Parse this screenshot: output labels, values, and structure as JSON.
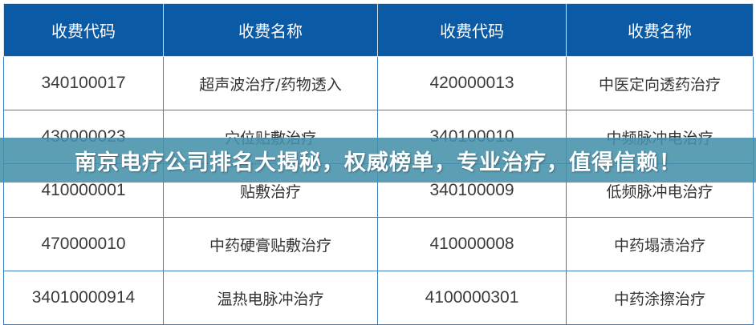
{
  "table": {
    "headers": [
      "收费代码",
      "收费名称",
      "收费代码",
      "收费名称"
    ],
    "rows": [
      [
        "340100017",
        "超声波治疗/药物透入",
        "420000013",
        "中医定向透药治疗"
      ],
      [
        "430000023",
        "穴位贴敷治疗",
        "340100010",
        "中频脉冲电治疗"
      ],
      [
        "410000001",
        "贴敷治疗",
        "340100009",
        "低频脉冲电治疗"
      ],
      [
        "470000010",
        "中药硬膏贴敷治疗",
        "410000008",
        "中药塌渍治疗"
      ],
      [
        "34010000914",
        "温热电脉冲治疗",
        "4100000301",
        "中药涂擦治疗"
      ]
    ]
  },
  "banner": {
    "title": "南京电疗公司排名大揭秘，权威榜单，专业治疗，值得信赖！"
  },
  "colors": {
    "header": "#0b5aa6",
    "banner": "#4691aa"
  }
}
